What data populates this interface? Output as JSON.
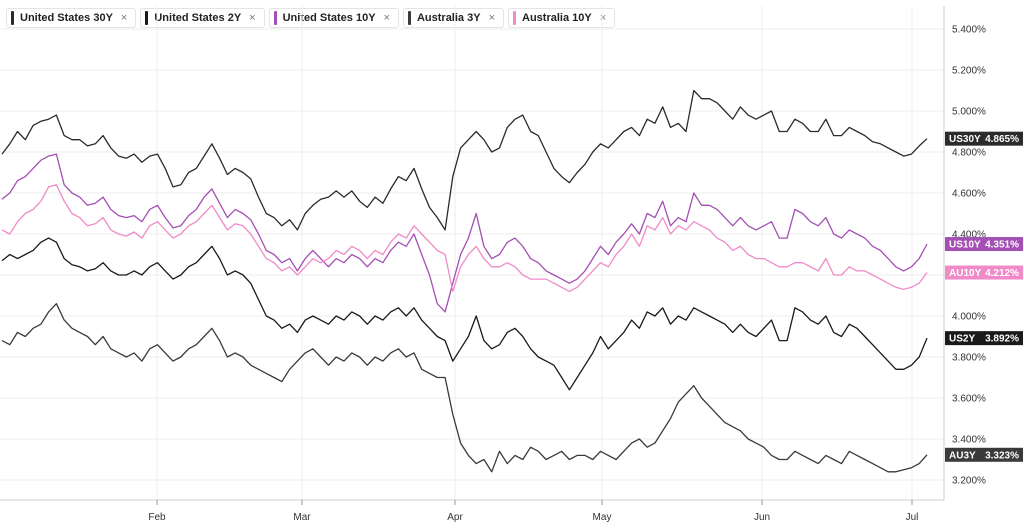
{
  "legend": [
    {
      "label": "United States 30Y",
      "color": "#2b2b2b",
      "close": "×"
    },
    {
      "label": "United States 2Y",
      "color": "#1a1a1a",
      "close": "×"
    },
    {
      "label": "United States 10Y",
      "color": "#a34fb3",
      "close": "×"
    },
    {
      "label": "Australia 3Y",
      "color": "#3a3a3a",
      "close": "×"
    },
    {
      "label": "Australia 10Y",
      "color": "#f08ac8",
      "close": "×"
    }
  ],
  "chart_data": {
    "type": "line",
    "x_ticks": [
      "Feb",
      "Mar",
      "Apr",
      "May",
      "Jun",
      "Jul"
    ],
    "y_ticks": [
      "3.200%",
      "3.400%",
      "3.600%",
      "3.800%",
      "4.000%",
      "4.200%",
      "4.400%",
      "4.600%",
      "4.800%",
      "5.000%",
      "5.200%",
      "5.400%"
    ],
    "ylim": [
      3.15,
      5.55
    ],
    "grid": true,
    "series": [
      {
        "name": "United States 30Y",
        "tag": "US30Y",
        "last_label": "4.865%",
        "color": "#2b2b2b",
        "values": [
          4.79,
          4.84,
          4.9,
          4.86,
          4.93,
          4.95,
          4.96,
          4.98,
          4.88,
          4.86,
          4.86,
          4.83,
          4.84,
          4.88,
          4.82,
          4.78,
          4.77,
          4.79,
          4.75,
          4.78,
          4.79,
          4.72,
          4.63,
          4.64,
          4.7,
          4.72,
          4.78,
          4.84,
          4.77,
          4.69,
          4.72,
          4.7,
          4.67,
          4.58,
          4.5,
          4.48,
          4.44,
          4.47,
          4.42,
          4.5,
          4.54,
          4.57,
          4.58,
          4.61,
          4.58,
          4.61,
          4.56,
          4.53,
          4.58,
          4.55,
          4.62,
          4.68,
          4.66,
          4.72,
          4.62,
          4.53,
          4.48,
          4.42,
          4.68,
          4.82,
          4.86,
          4.9,
          4.86,
          4.8,
          4.82,
          4.92,
          4.96,
          4.98,
          4.9,
          4.88,
          4.8,
          4.72,
          4.68,
          4.65,
          4.7,
          4.74,
          4.8,
          4.84,
          4.82,
          4.86,
          4.9,
          4.92,
          4.88,
          4.96,
          4.94,
          5.02,
          4.92,
          4.94,
          4.9,
          5.1,
          5.06,
          5.06,
          5.04,
          5.0,
          4.96,
          5.02,
          4.98,
          4.96,
          4.98,
          5.0,
          4.9,
          4.9,
          4.96,
          4.94,
          4.9,
          4.9,
          4.96,
          4.88,
          4.88,
          4.92,
          4.9,
          4.88,
          4.85,
          4.84,
          4.82,
          4.8,
          4.78,
          4.79,
          4.83,
          4.865
        ]
      },
      {
        "name": "United States 10Y",
        "tag": "US10Y",
        "last_label": "4.351%",
        "color": "#a34fb3",
        "values": [
          4.57,
          4.6,
          4.66,
          4.68,
          4.72,
          4.76,
          4.78,
          4.79,
          4.64,
          4.6,
          4.58,
          4.54,
          4.55,
          4.58,
          4.52,
          4.49,
          4.48,
          4.49,
          4.46,
          4.52,
          4.54,
          4.48,
          4.43,
          4.44,
          4.49,
          4.52,
          4.58,
          4.62,
          4.55,
          4.48,
          4.52,
          4.5,
          4.47,
          4.4,
          4.32,
          4.3,
          4.26,
          4.28,
          4.22,
          4.28,
          4.32,
          4.28,
          4.24,
          4.28,
          4.26,
          4.3,
          4.28,
          4.24,
          4.28,
          4.26,
          4.32,
          4.36,
          4.34,
          4.4,
          4.3,
          4.2,
          4.06,
          4.02,
          4.16,
          4.3,
          4.38,
          4.5,
          4.34,
          4.28,
          4.3,
          4.36,
          4.38,
          4.34,
          4.28,
          4.26,
          4.22,
          4.2,
          4.18,
          4.16,
          4.18,
          4.22,
          4.28,
          4.34,
          4.3,
          4.36,
          4.4,
          4.45,
          4.4,
          4.5,
          4.48,
          4.56,
          4.44,
          4.48,
          4.46,
          4.6,
          4.54,
          4.54,
          4.52,
          4.48,
          4.44,
          4.48,
          4.44,
          4.42,
          4.44,
          4.46,
          4.38,
          4.38,
          4.52,
          4.5,
          4.46,
          4.44,
          4.48,
          4.4,
          4.38,
          4.42,
          4.4,
          4.38,
          4.34,
          4.32,
          4.28,
          4.24,
          4.22,
          4.24,
          4.28,
          4.351
        ]
      },
      {
        "name": "Australia 10Y",
        "tag": "AU10Y",
        "last_label": "4.212%",
        "color": "#f08ac8",
        "values": [
          4.42,
          4.4,
          4.46,
          4.5,
          4.52,
          4.56,
          4.63,
          4.64,
          4.56,
          4.5,
          4.48,
          4.44,
          4.45,
          4.48,
          4.42,
          4.4,
          4.39,
          4.41,
          4.38,
          4.44,
          4.46,
          4.42,
          4.38,
          4.4,
          4.44,
          4.46,
          4.5,
          4.54,
          4.48,
          4.42,
          4.45,
          4.44,
          4.4,
          4.34,
          4.28,
          4.26,
          4.22,
          4.24,
          4.2,
          4.24,
          4.28,
          4.26,
          4.28,
          4.32,
          4.3,
          4.34,
          4.32,
          4.28,
          4.32,
          4.3,
          4.36,
          4.4,
          4.38,
          4.44,
          4.4,
          4.36,
          4.32,
          4.3,
          4.12,
          4.24,
          4.3,
          4.34,
          4.28,
          4.24,
          4.24,
          4.26,
          4.24,
          4.2,
          4.18,
          4.18,
          4.18,
          4.16,
          4.14,
          4.12,
          4.14,
          4.18,
          4.22,
          4.26,
          4.24,
          4.3,
          4.34,
          4.4,
          4.34,
          4.44,
          4.42,
          4.48,
          4.4,
          4.44,
          4.42,
          4.46,
          4.44,
          4.42,
          4.38,
          4.36,
          4.32,
          4.34,
          4.3,
          4.28,
          4.28,
          4.26,
          4.24,
          4.24,
          4.26,
          4.26,
          4.24,
          4.22,
          4.28,
          4.2,
          4.2,
          4.24,
          4.22,
          4.22,
          4.2,
          4.18,
          4.16,
          4.14,
          4.13,
          4.14,
          4.16,
          4.212
        ]
      },
      {
        "name": "United States 2Y",
        "tag": "US2Y",
        "last_label": "3.892%",
        "color": "#1a1a1a",
        "values": [
          4.27,
          4.3,
          4.28,
          4.3,
          4.32,
          4.36,
          4.38,
          4.36,
          4.28,
          4.25,
          4.24,
          4.22,
          4.23,
          4.26,
          4.22,
          4.2,
          4.2,
          4.22,
          4.2,
          4.24,
          4.26,
          4.22,
          4.18,
          4.2,
          4.24,
          4.26,
          4.3,
          4.34,
          4.28,
          4.2,
          4.22,
          4.2,
          4.16,
          4.08,
          4.0,
          3.98,
          3.94,
          3.96,
          3.92,
          3.98,
          4.0,
          3.98,
          3.96,
          4.0,
          3.98,
          4.02,
          4.0,
          3.96,
          4.0,
          3.98,
          4.02,
          4.04,
          4.0,
          4.04,
          3.98,
          3.94,
          3.9,
          3.88,
          3.78,
          3.84,
          3.9,
          4.0,
          3.88,
          3.84,
          3.86,
          3.92,
          3.94,
          3.9,
          3.84,
          3.8,
          3.78,
          3.76,
          3.7,
          3.64,
          3.7,
          3.76,
          3.82,
          3.9,
          3.84,
          3.88,
          3.92,
          3.98,
          3.94,
          4.02,
          4.0,
          4.04,
          3.96,
          4.0,
          3.98,
          4.04,
          4.02,
          4.0,
          3.98,
          3.96,
          3.92,
          3.96,
          3.92,
          3.9,
          3.94,
          3.98,
          3.88,
          3.88,
          4.04,
          4.02,
          3.98,
          3.96,
          4.0,
          3.92,
          3.9,
          3.96,
          3.94,
          3.9,
          3.86,
          3.82,
          3.78,
          3.74,
          3.74,
          3.76,
          3.8,
          3.892
        ]
      },
      {
        "name": "Australia 3Y",
        "tag": "AU3Y",
        "last_label": "3.323%",
        "color": "#3a3a3a",
        "values": [
          3.88,
          3.86,
          3.92,
          3.9,
          3.94,
          3.96,
          4.02,
          4.06,
          3.98,
          3.94,
          3.92,
          3.9,
          3.86,
          3.9,
          3.84,
          3.82,
          3.8,
          3.82,
          3.78,
          3.84,
          3.86,
          3.82,
          3.78,
          3.8,
          3.84,
          3.86,
          3.9,
          3.94,
          3.88,
          3.8,
          3.82,
          3.8,
          3.76,
          3.74,
          3.72,
          3.7,
          3.68,
          3.74,
          3.78,
          3.82,
          3.84,
          3.8,
          3.76,
          3.8,
          3.78,
          3.82,
          3.8,
          3.76,
          3.8,
          3.78,
          3.82,
          3.84,
          3.8,
          3.82,
          3.74,
          3.72,
          3.7,
          3.7,
          3.52,
          3.38,
          3.32,
          3.28,
          3.3,
          3.24,
          3.34,
          3.28,
          3.32,
          3.3,
          3.36,
          3.34,
          3.3,
          3.32,
          3.34,
          3.3,
          3.32,
          3.32,
          3.3,
          3.34,
          3.32,
          3.3,
          3.34,
          3.38,
          3.4,
          3.36,
          3.38,
          3.44,
          3.5,
          3.58,
          3.62,
          3.66,
          3.6,
          3.56,
          3.52,
          3.48,
          3.46,
          3.44,
          3.4,
          3.38,
          3.36,
          3.32,
          3.3,
          3.3,
          3.34,
          3.32,
          3.3,
          3.28,
          3.32,
          3.3,
          3.28,
          3.34,
          3.32,
          3.3,
          3.28,
          3.26,
          3.24,
          3.24,
          3.25,
          3.26,
          3.28,
          3.323
        ]
      }
    ]
  }
}
